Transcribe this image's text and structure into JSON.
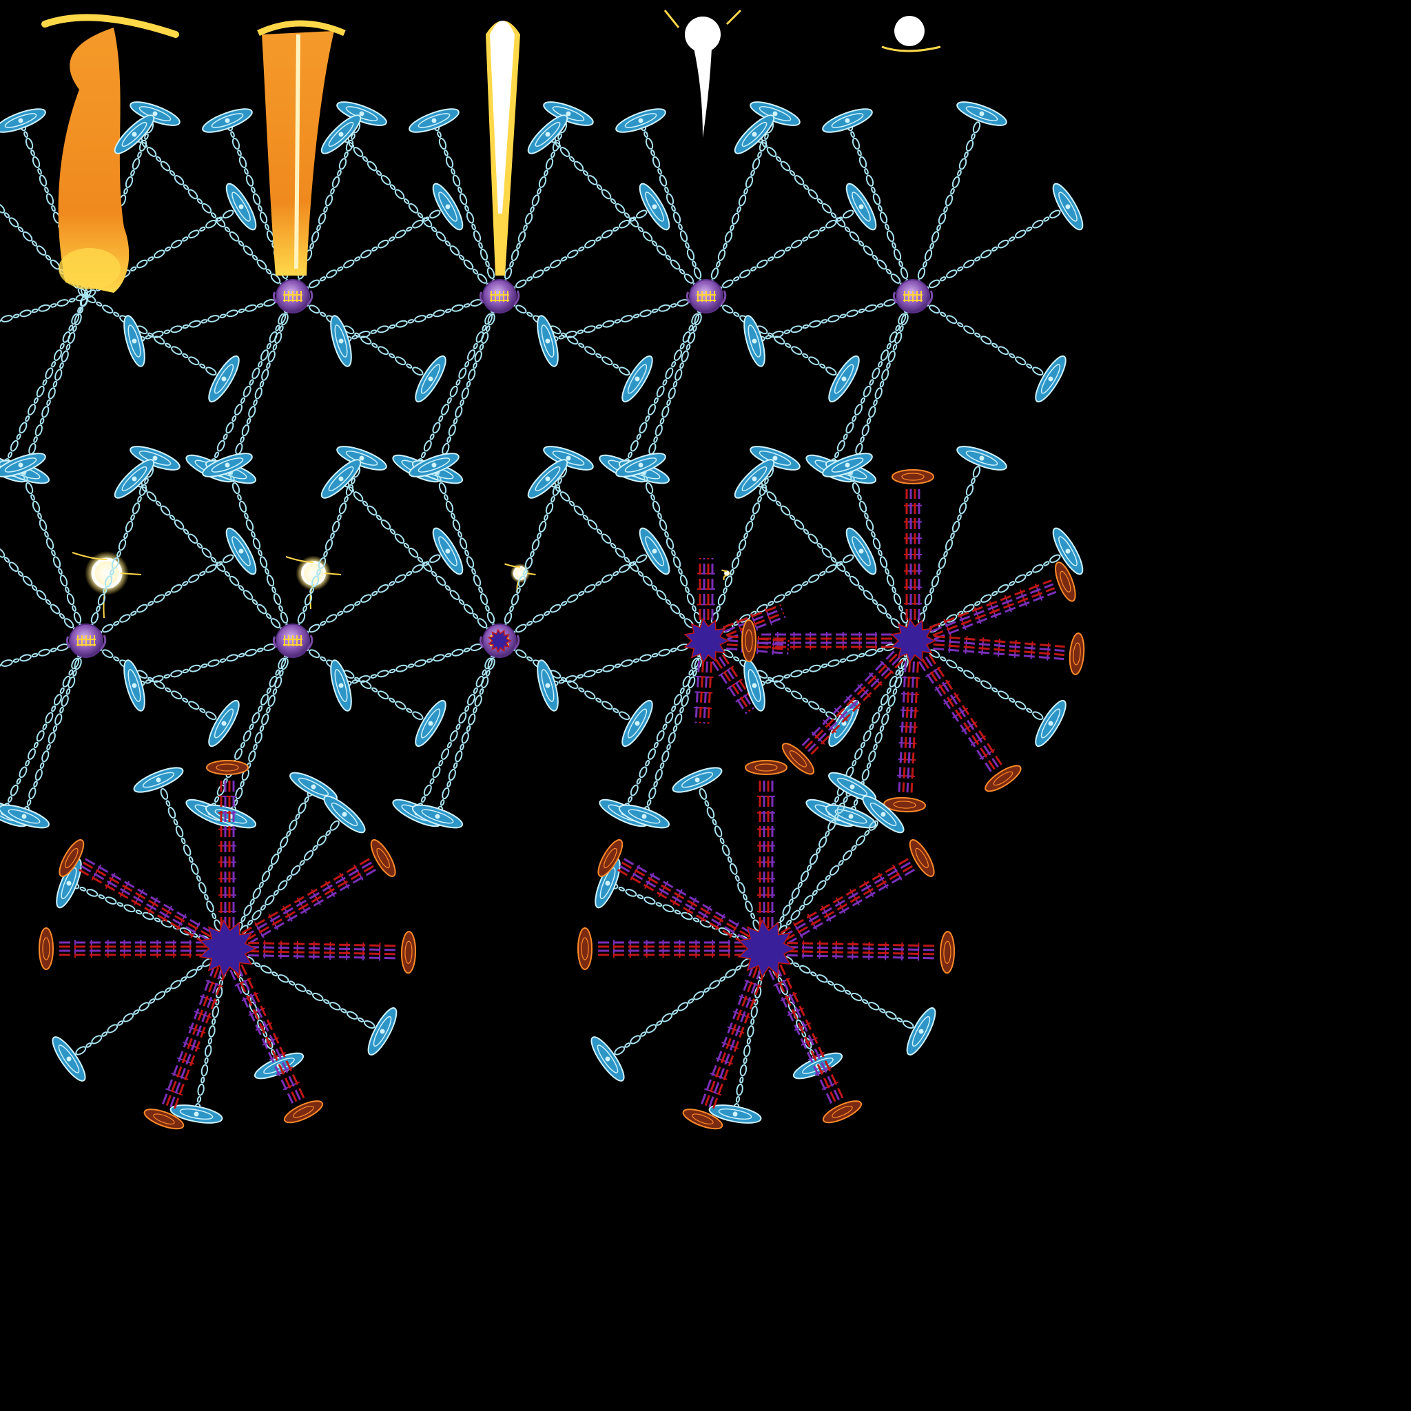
{
  "sheet": {
    "background": "#000000",
    "frame_count": 17,
    "columns": 5
  },
  "colors": {
    "chain": "#a9e4f2",
    "anchor": "#2e95c7",
    "anchor_highlight": "#cff3ff",
    "core_purple": "#8c5ab8",
    "core_rune": "#ffd23a",
    "dark_core": "#3a1f9a",
    "flame_orange": "#f08a1e",
    "flame_yellow": "#ffd84a",
    "flare_white": "#ffffff",
    "spike_red": "#c01616",
    "spike_purple": "#7a2fb8",
    "dark_anchor": "#7a2a10",
    "dark_anchor_rim": "#ff8a2a"
  },
  "icons": {
    "anchor": "ice-anchor-icon",
    "core": "rune-orb-icon",
    "dark_core": "dark-nova-icon",
    "dark_anchor": "blood-sigil-icon",
    "flame": "flame-pillar-icon",
    "flare": "light-flare-icon"
  },
  "frames": [
    {
      "index": 1,
      "type": "fire-descend",
      "chains": 8,
      "core": "flame",
      "spikes": 0,
      "effect": "flame-large"
    },
    {
      "index": 2,
      "type": "fire-descend",
      "chains": 8,
      "core": "orb",
      "spikes": 0,
      "effect": "flame-thin"
    },
    {
      "index": 3,
      "type": "fire-descend",
      "chains": 8,
      "core": "orb",
      "spikes": 0,
      "effect": "beam"
    },
    {
      "index": 4,
      "type": "fire-descend",
      "chains": 8,
      "core": "orb",
      "spikes": 0,
      "effect": "flare-drip"
    },
    {
      "index": 5,
      "type": "fire-descend",
      "chains": 8,
      "core": "orb",
      "spikes": 0,
      "effect": "flare-small"
    },
    {
      "index": 6,
      "type": "spark",
      "chains": 0,
      "core": "none",
      "spikes": 0,
      "effect": "spark-large"
    },
    {
      "index": 7,
      "type": "spark",
      "chains": 0,
      "core": "none",
      "spikes": 0,
      "effect": "spark-medium"
    },
    {
      "index": 8,
      "type": "spark",
      "chains": 0,
      "core": "none",
      "spikes": 0,
      "effect": "spark-small"
    },
    {
      "index": 9,
      "type": "spark",
      "chains": 0,
      "core": "none",
      "spikes": 0,
      "effect": "spark-tiny"
    },
    {
      "index": 10,
      "type": "binding",
      "chains": 8,
      "core": "orb",
      "spikes": 0,
      "effect": "none"
    },
    {
      "index": 11,
      "type": "binding",
      "chains": 8,
      "core": "orb",
      "spikes": 0,
      "effect": "none"
    },
    {
      "index": 12,
      "type": "binding",
      "chains": 8,
      "core": "orb-dark",
      "spikes": 0,
      "effect": "none"
    },
    {
      "index": 13,
      "type": "eruption",
      "chains": 8,
      "core": "dark",
      "spikes": 5,
      "effect": "none"
    },
    {
      "index": 14,
      "type": "eruption",
      "chains": 8,
      "core": "dark",
      "spikes": 7,
      "effect": "none"
    },
    {
      "index": 15,
      "type": "empty",
      "chains": 0,
      "core": "none",
      "spikes": 0,
      "effect": "none"
    },
    {
      "index": 16,
      "type": "eruption-full",
      "chains": 8,
      "core": "dark",
      "spikes": 7,
      "effect": "none"
    },
    {
      "index": 17,
      "type": "eruption-full",
      "chains": 8,
      "core": "dark",
      "spikes": 7,
      "effect": "none"
    }
  ]
}
